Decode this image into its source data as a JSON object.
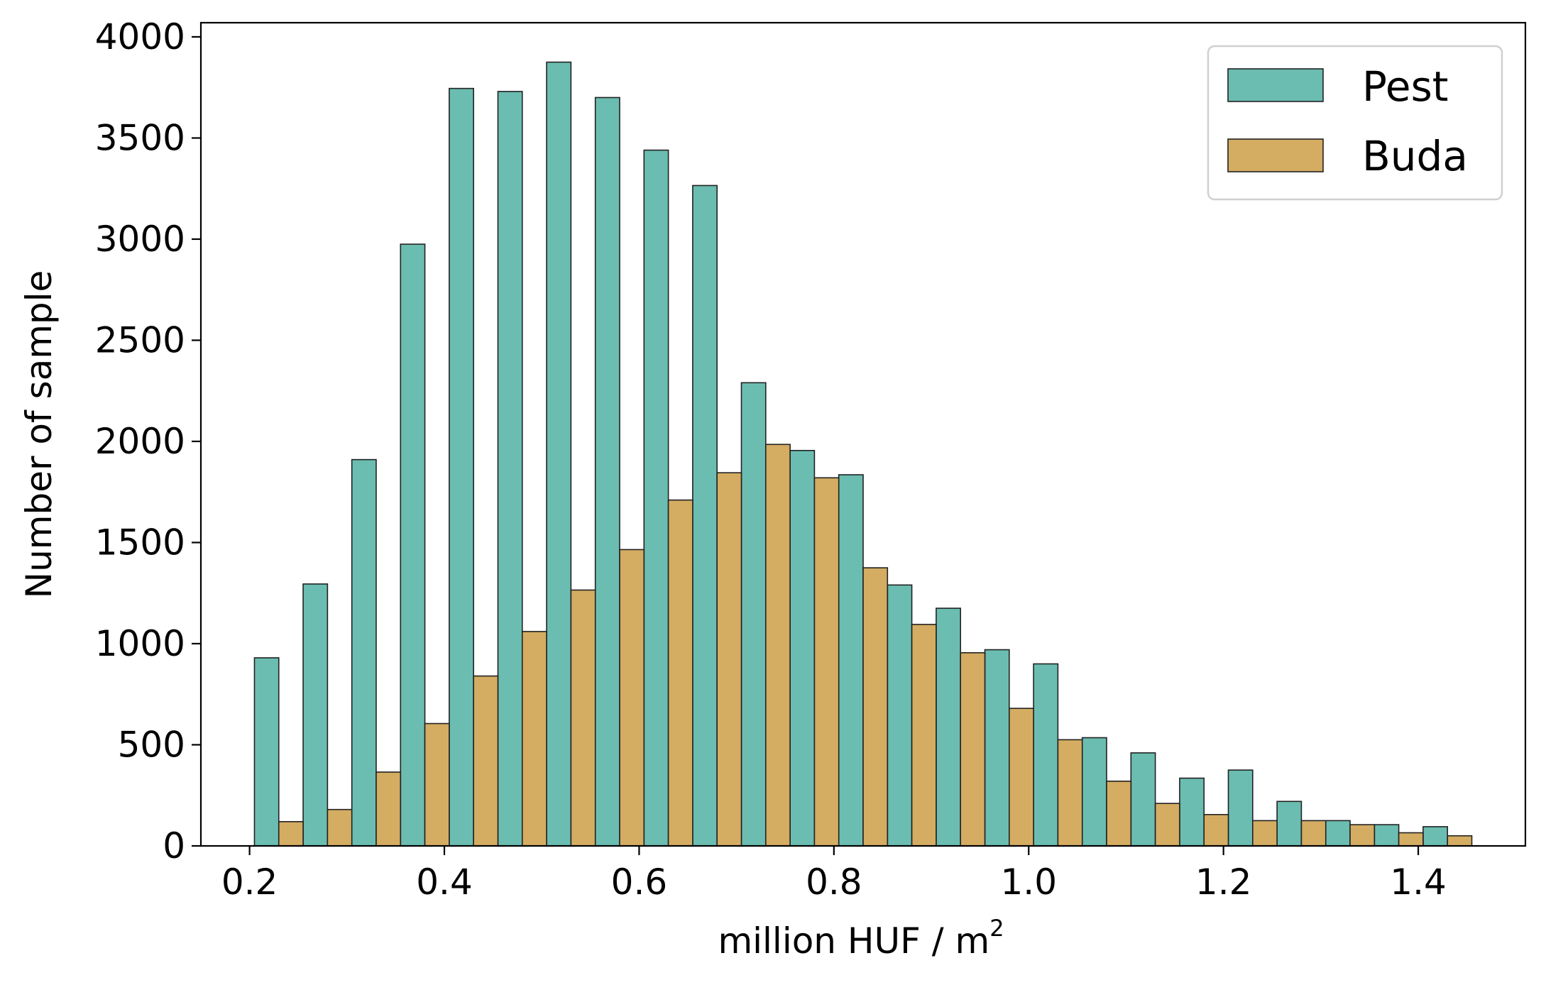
{
  "chart_data": {
    "type": "bar",
    "title": "",
    "xlabel": "million HUF / m",
    "xlabel_superscript": "2",
    "ylabel": "Number of sample",
    "xlim": [
      0.15,
      1.51
    ],
    "ylim": [
      0,
      4070
    ],
    "x_ticks": [
      0.2,
      0.4,
      0.6,
      0.8,
      1.0,
      1.2,
      1.4
    ],
    "x_tick_labels": [
      "0.2",
      "0.4",
      "0.6",
      "0.8",
      "1.0",
      "1.2",
      "1.4"
    ],
    "y_ticks": [
      0,
      500,
      1000,
      1500,
      2000,
      2500,
      3000,
      3500,
      4000
    ],
    "y_tick_labels": [
      "0",
      "500",
      "1000",
      "1500",
      "2000",
      "2500",
      "3000",
      "3500",
      "4000"
    ],
    "grid": false,
    "legend_position": "top-right",
    "bin_start": 0.205,
    "bin_width": 0.05,
    "x": [
      0.225,
      0.275,
      0.325,
      0.375,
      0.425,
      0.475,
      0.525,
      0.575,
      0.625,
      0.675,
      0.725,
      0.775,
      0.825,
      0.875,
      0.925,
      0.975,
      1.025,
      1.075,
      1.125,
      1.175,
      1.225,
      1.275,
      1.325,
      1.375,
      1.425
    ],
    "series": [
      {
        "name": "Pest",
        "color": "#6bbdb1",
        "values": [
          930,
          1295,
          1910,
          2975,
          3745,
          3730,
          3875,
          3700,
          3440,
          3265,
          2290,
          1955,
          1835,
          1290,
          1175,
          970,
          900,
          535,
          460,
          335,
          375,
          220,
          125,
          105,
          95
        ]
      },
      {
        "name": "Buda",
        "color": "#d4ac62",
        "values": [
          120,
          180,
          365,
          605,
          840,
          1060,
          1265,
          1465,
          1710,
          1845,
          1985,
          1820,
          1375,
          1095,
          955,
          680,
          525,
          320,
          210,
          155,
          125,
          125,
          105,
          65,
          50
        ]
      }
    ]
  }
}
